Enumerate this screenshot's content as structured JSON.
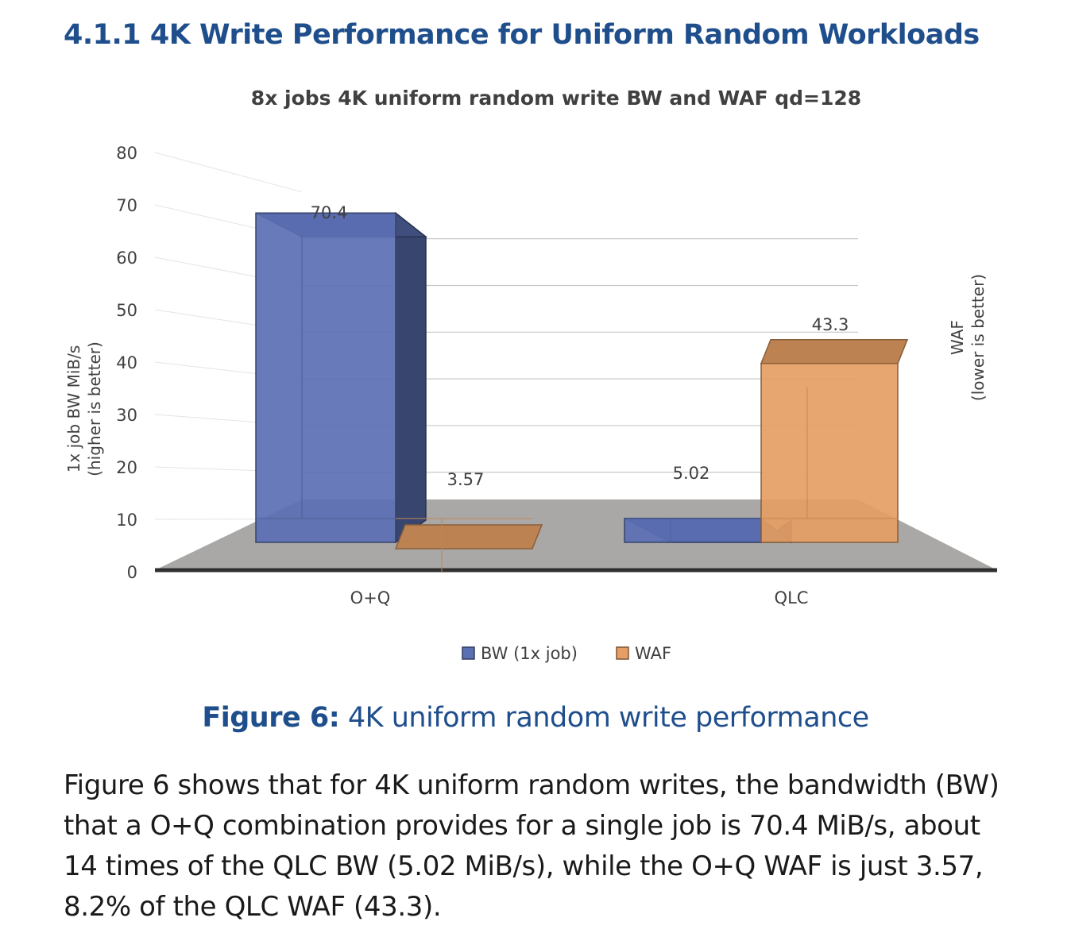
{
  "section": {
    "number": "4.1.1",
    "title": "4K Write Performance for Uniform Random Workloads"
  },
  "chart_data": {
    "type": "bar",
    "title": "8x jobs 4K uniform random write BW and WAF qd=128",
    "categories": [
      "O+Q",
      "QLC"
    ],
    "series": [
      {
        "name": "BW (1x job)",
        "values": [
          70.4,
          5.02
        ],
        "color": "#5b6fb3",
        "axis": "left"
      },
      {
        "name": "WAF",
        "values": [
          3.57,
          43.3
        ],
        "color": "#e59e63",
        "axis": "right"
      }
    ],
    "data_labels": [
      "70.4",
      "3.57",
      "5.02",
      "43.3"
    ],
    "ylabel_left": [
      "1x job BW MiB/s",
      "(higher is better)"
    ],
    "ylabel_right": [
      "WAF",
      "(lower is better)"
    ],
    "yticks": [
      "0",
      "10",
      "20",
      "30",
      "40",
      "50",
      "60",
      "70",
      "80"
    ],
    "ylim": [
      0,
      80
    ],
    "grid": true,
    "legend_position": "bottom",
    "style": "3d-bars"
  },
  "caption": {
    "label": "Figure 6:",
    "text": "4K uniform random write performance"
  },
  "body": {
    "paragraph": "Figure 6 shows that for 4K uniform random writes, the bandwidth (BW) that a O+Q combination provides for a single job is 70.4 MiB/s, about 14 times of the QLC BW (5.02 MiB/s), while the O+Q WAF is just 3.57, 8.2% of the QLC WAF (43.3)."
  },
  "colors": {
    "heading": "#1f4e8c",
    "bw": "#5b6fb3",
    "waf": "#e59e63",
    "floor": "#a9a8a6"
  }
}
